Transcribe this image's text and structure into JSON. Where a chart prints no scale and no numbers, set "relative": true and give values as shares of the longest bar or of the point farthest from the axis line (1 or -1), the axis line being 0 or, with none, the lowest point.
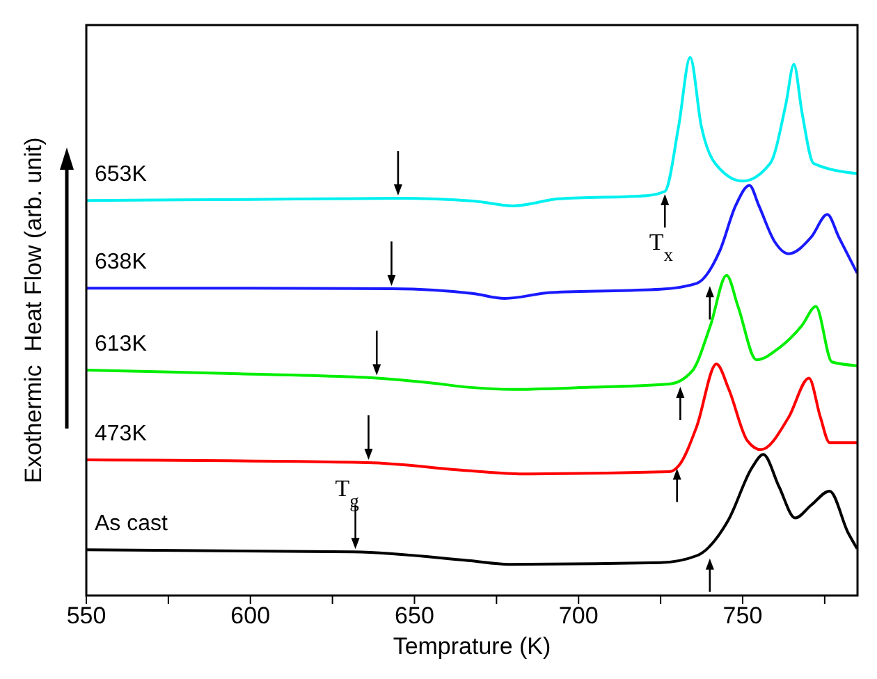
{
  "chart_data": {
    "type": "line",
    "relative": true,
    "xlabel": "Temprature (K)",
    "ylabel": "Exothermic  Heat Flow (arb. unit)",
    "xlim": [
      550,
      785
    ],
    "xticks": [
      550,
      {
        "value": 575,
        "label": null
      },
      600,
      {
        "value": 625,
        "label": null
      },
      650,
      {
        "value": 675,
        "label": null
      },
      700,
      {
        "value": 725,
        "label": null
      },
      750,
      {
        "value": 775,
        "label": null
      }
    ],
    "grid": false,
    "legend": false,
    "marker": "none",
    "line_style": "solid",
    "annotations": [
      {
        "text": "T$_{g}$",
        "x": 632,
        "y": 0.081
      },
      {
        "text": "T$_{x}$",
        "x": 726,
        "y": 0.751
      }
    ],
    "series": [
      {
        "name": "As cast",
        "color": "#000000",
        "x": [
          550,
          631.5,
          666.4,
          678.8,
          724.9,
          736,
          745.8,
          752.8,
          756.3,
          761.1,
          766,
          770.9,
          776.5,
          782.1,
          784.9
        ],
        "values": [
          0.085,
          0.081,
          0.065,
          0.058,
          0.061,
          0.074,
          0.142,
          0.237,
          0.262,
          0.202,
          0.144,
          0.168,
          0.194,
          0.117,
          0.087
        ]
      },
      {
        "name": "473K",
        "color": "#ff0000",
        "x": [
          550,
          635.7,
          666.4,
          683,
          727.7,
          730.5,
          736,
          742,
          745.8,
          751.4,
          755.6,
          764,
          770.2,
          773.7,
          776.5,
          784.9
        ],
        "values": [
          0.252,
          0.247,
          0.232,
          0.226,
          0.23,
          0.241,
          0.314,
          0.43,
          0.383,
          0.288,
          0.271,
          0.331,
          0.404,
          0.331,
          0.284,
          0.284
        ]
      },
      {
        "name": "613K",
        "color": "#00ee00",
        "x": [
          550,
          596.6,
          638.5,
          655.2,
          666.4,
          680.2,
          704,
          727.7,
          734.6,
          740.2,
          745.1,
          748.6,
          754.2,
          761.1,
          768.1,
          772.3,
          777.2,
          784.9
        ],
        "values": [
          0.419,
          0.412,
          0.404,
          0.395,
          0.387,
          0.383,
          0.387,
          0.393,
          0.417,
          0.502,
          0.595,
          0.537,
          0.438,
          0.46,
          0.502,
          0.537,
          0.434,
          0.427
        ]
      },
      {
        "name": "638K",
        "color": "#1a1aff",
        "x": [
          550,
          600,
          643,
          668,
          677.5,
          691.4,
          724.9,
          736,
          743,
          747.9,
          752.1,
          754.9,
          759.8,
          764,
          770.9,
          775.8,
          779.3,
          784.9
        ],
        "values": [
          0.571,
          0.571,
          0.57,
          0.561,
          0.552,
          0.563,
          0.569,
          0.58,
          0.64,
          0.725,
          0.762,
          0.725,
          0.657,
          0.635,
          0.666,
          0.708,
          0.666,
          0.599
        ]
      },
      {
        "name": "653K",
        "color": "#00f0f0",
        "x": [
          550,
          600,
          645,
          668,
          680,
          694,
          720.7,
          726.3,
          730.5,
          734,
          737.4,
          741.6,
          750,
          758.4,
          763.2,
          765.6,
          768.1,
          771.6,
          785
        ],
        "values": [
          0.734,
          0.736,
          0.738,
          0.733,
          0.724,
          0.737,
          0.743,
          0.751,
          0.872,
          1.0,
          0.872,
          0.803,
          0.77,
          0.803,
          0.914,
          0.987,
          0.897,
          0.803,
          0.784
        ]
      }
    ]
  }
}
